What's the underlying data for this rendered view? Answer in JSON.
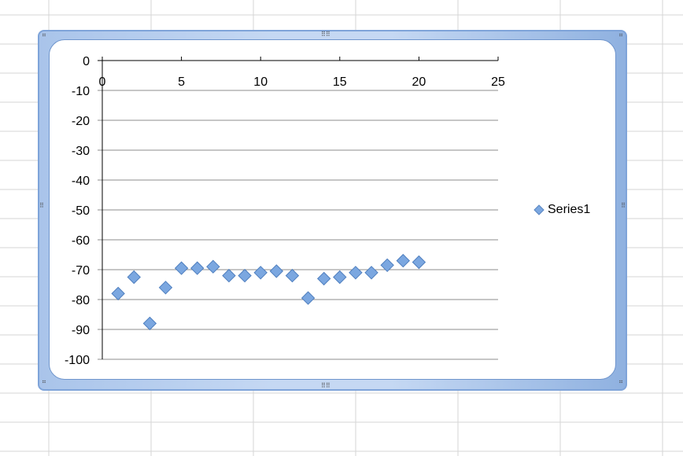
{
  "chart_data": {
    "type": "scatter",
    "x": [
      1,
      2,
      3,
      4,
      5,
      6,
      7,
      8,
      9,
      10,
      11,
      12,
      13,
      14,
      15,
      16,
      17,
      18,
      19,
      20
    ],
    "series": [
      {
        "name": "Series1",
        "y": [
          -78,
          -72.5,
          -88,
          -76,
          -69.5,
          -69.5,
          -69,
          -72,
          -72,
          -71,
          -70.5,
          -72,
          -79.5,
          -73,
          -72.5,
          -71,
          -71,
          -68.5,
          -67,
          -67.5
        ]
      }
    ],
    "xlim": [
      0,
      25
    ],
    "ylim": [
      -100,
      0
    ],
    "xticks": [
      0,
      5,
      10,
      15,
      20,
      25
    ],
    "yticks": [
      0,
      -10,
      -20,
      -30,
      -40,
      -50,
      -60,
      -70,
      -80,
      -90,
      -100
    ],
    "grid": "horizontal",
    "legend_position": "right",
    "marker": "diamond",
    "marker_color": "#7ba7e0"
  }
}
